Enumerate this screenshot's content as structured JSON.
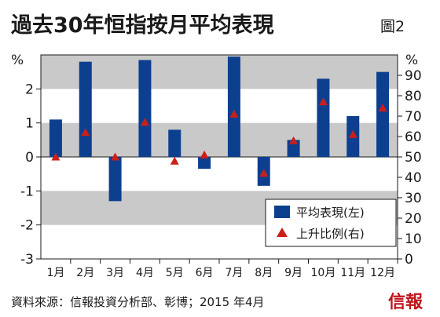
{
  "title": "過去30年恒指按月平均表現",
  "figure_number": "圖2",
  "source": "資料來源：信報投資分析部、彰博；2015 年4月",
  "publisher": "信報",
  "colors": {
    "bar": "#0d3f8f",
    "marker": "#cc1f1a",
    "band": "#c9c9c9",
    "gridline": "#ffffff",
    "axis": "#1a1a1a"
  },
  "chart_data": {
    "type": "bar",
    "categories": [
      "1月",
      "2月",
      "3月",
      "4月",
      "5月",
      "6月",
      "7月",
      "8月",
      "9月",
      "10月",
      "11月",
      "12月"
    ],
    "series": [
      {
        "name": "平均表現(左)",
        "type": "bar",
        "axis": "left",
        "values": [
          1.1,
          2.8,
          -1.3,
          2.85,
          0.8,
          -0.35,
          2.95,
          -0.85,
          0.5,
          2.3,
          1.2,
          2.5
        ]
      },
      {
        "name": "上升比例(右)",
        "type": "scatter",
        "marker": "triangle",
        "axis": "right",
        "values": [
          50,
          62,
          50,
          67,
          48,
          51,
          71,
          42,
          58,
          77,
          61,
          74
        ]
      }
    ],
    "y_left": {
      "label": "%",
      "range": [
        -3,
        3
      ],
      "ticks": [
        "-3",
        "-2",
        "-1",
        "0",
        "1",
        "2"
      ]
    },
    "y_right": {
      "label": "%",
      "range": [
        0,
        100
      ],
      "ticks": [
        "0",
        "10",
        "20",
        "30",
        "40",
        "50",
        "60",
        "70",
        "80",
        "90"
      ]
    },
    "legend": "bottom-right",
    "grid": "alternating bands"
  }
}
